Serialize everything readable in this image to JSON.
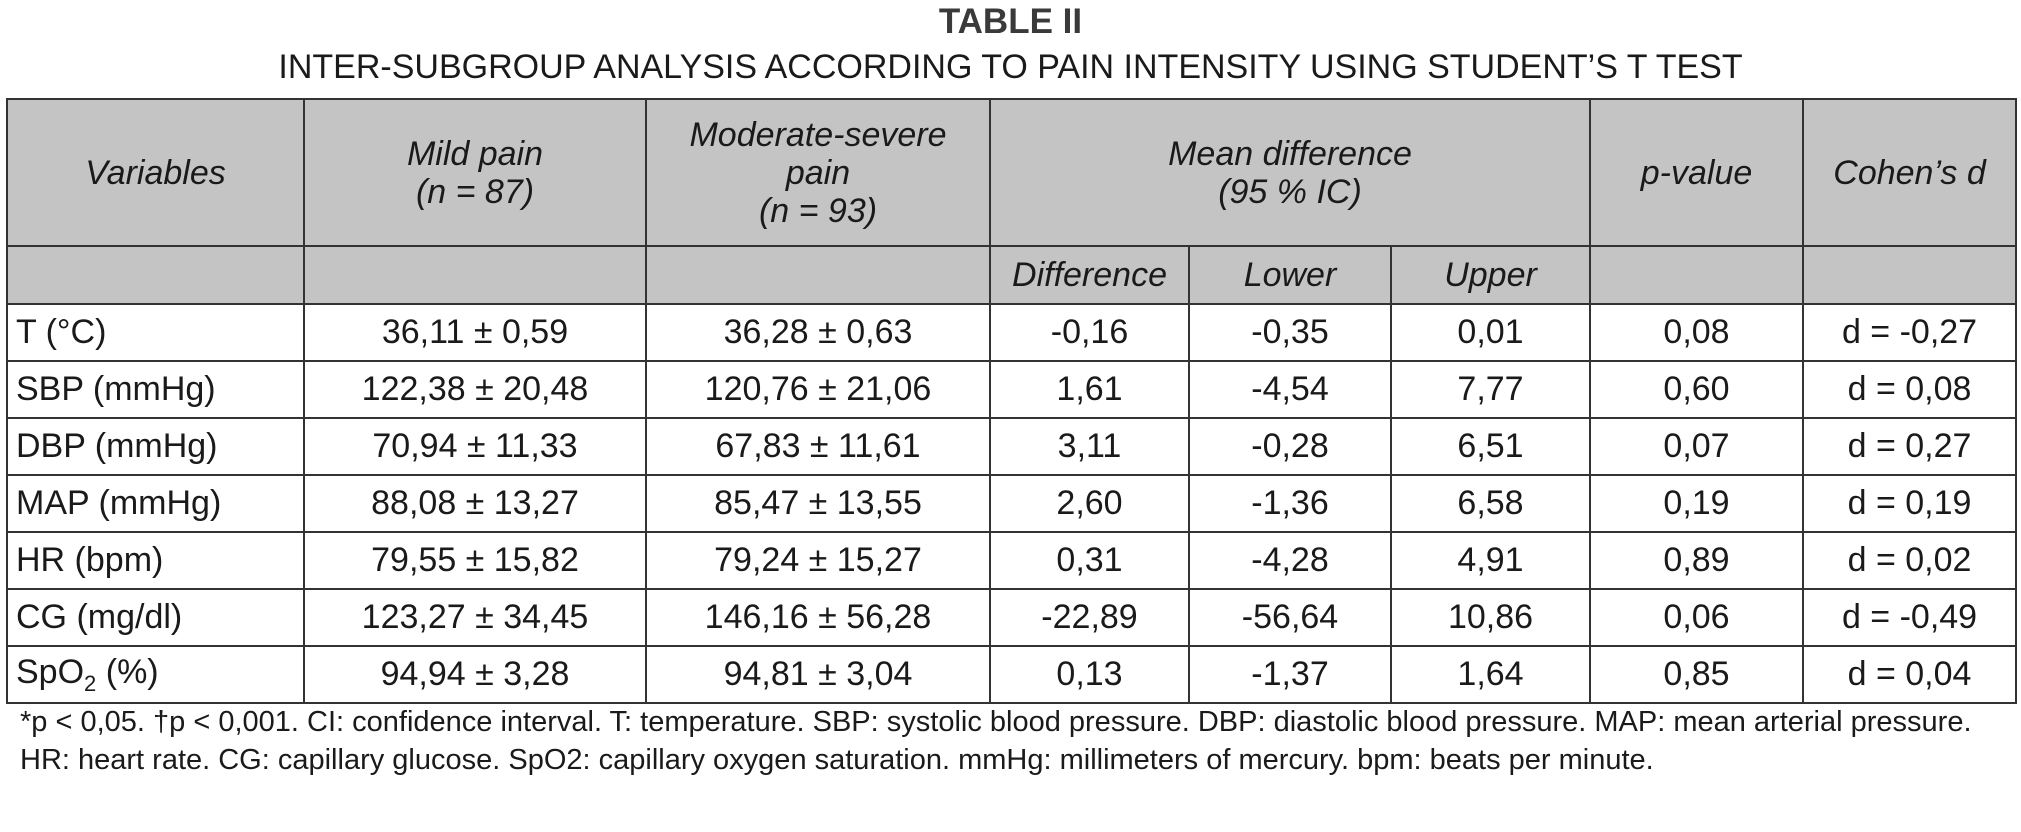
{
  "header": {
    "title": "TABLE II",
    "subtitle": "INTER-SUBGROUP ANALYSIS ACCORDING TO PAIN INTENSITY USING STUDENT’S T TEST"
  },
  "table": {
    "columns": [
      {
        "lines": [
          "Variables"
        ]
      },
      {
        "lines": [
          "Mild pain",
          "(n = 87)"
        ]
      },
      {
        "lines": [
          "Moderate-severe pain",
          "(n = 93)"
        ]
      },
      {
        "lines": [
          "Mean difference",
          "(95 % IC)"
        ],
        "span": 3
      },
      {
        "lines": [
          "p-value"
        ]
      },
      {
        "lines": [
          "Cohen’s d"
        ]
      }
    ],
    "subcolumns": [
      "Difference",
      "Lower",
      "Upper"
    ],
    "rows": [
      [
        "T (°C)",
        "36,11 ± 0,59",
        "36,28 ± 0,63",
        "-0,16",
        "-0,35",
        "0,01",
        "0,08",
        "d = -0,27"
      ],
      [
        "SBP (mmHg)",
        "122,38 ± 20,48",
        "120,76 ± 21,06",
        "1,61",
        "-4,54",
        "7,77",
        "0,60",
        "d = 0,08"
      ],
      [
        "DBP (mmHg)",
        "70,94 ± 11,33",
        "67,83 ± 11,61",
        "3,11",
        "-0,28",
        "6,51",
        "0,07",
        "d = 0,27"
      ],
      [
        "MAP (mmHg)",
        "88,08 ± 13,27",
        "85,47 ± 13,55",
        "2,60",
        "-1,36",
        "6,58",
        "0,19",
        "d = 0,19"
      ],
      [
        "HR (bpm)",
        "79,55 ± 15,82",
        "79,24 ± 15,27",
        "0,31",
        "-4,28",
        "4,91",
        "0,89",
        "d = 0,02"
      ],
      [
        "CG (mg/dl)",
        "123,27 ± 34,45",
        "146,16 ± 56,28",
        "-22,89",
        "-56,64",
        "10,86",
        "0,06",
        "d = -0,49"
      ],
      [
        {
          "base": "SpO",
          "sub": "2",
          "rest": " (%)"
        },
        "94,94 ± 3,28",
        "94,81 ± 3,04",
        "0,13",
        "-1,37",
        "1,64",
        "0,85",
        "d = 0,04"
      ]
    ]
  },
  "footnote": "*p < 0,05. †p < 0,001. CI: confidence interval. T: temperature. SBP: systolic blood pressure. DBP: diastolic blood pressure. MAP: mean arterial pressure. HR: heart rate. CG: capillary glucose. SpO2: capillary oxygen saturation. mmHg: millimeters of mercury. bpm: beats per minute."
}
